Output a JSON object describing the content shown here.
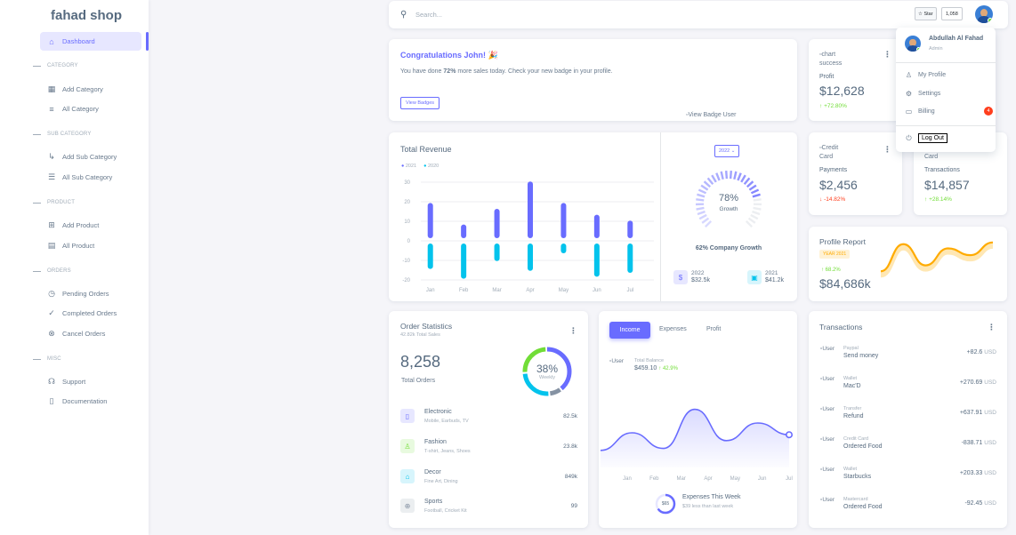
{
  "sidebar": {
    "brand": "fahad shop",
    "dashboard": "Dashboard",
    "sections": [
      {
        "title": "CATEGORY",
        "items": [
          "Add Category",
          "All Category"
        ]
      },
      {
        "title": "SUB CATEGORY",
        "items": [
          "Add Sub Category",
          "All Sub Category"
        ]
      },
      {
        "title": "PRODUCT",
        "items": [
          "Add Product",
          "All Product"
        ]
      },
      {
        "title": "ORDERS",
        "items": [
          "Pending Orders",
          "Completed Orders",
          "Cancel Orders"
        ]
      },
      {
        "title": "MISC",
        "items": [
          "Support",
          "Documentation"
        ]
      }
    ]
  },
  "navbar": {
    "search_placeholder": "Search...",
    "star_label": "Star",
    "star_count": "1,058"
  },
  "dropdown": {
    "user_name": "Abdullah Al Fahad",
    "user_role": "Admin",
    "my_profile": "My Profile",
    "settings": "Settings",
    "billing": "Billing",
    "billing_badge": "4",
    "logout": "Log Out"
  },
  "congrats": {
    "title": "Congratulations John! 🎉",
    "text_pre": "You have done ",
    "text_bold": "72%",
    "text_post": " more sales today. Check your new badge in your profile.",
    "button": "View Badges",
    "image_alt": "View Badge User"
  },
  "profit": {
    "img_alt": "chart success",
    "label": "Profit",
    "value": "$12,628",
    "change": "+72.80%"
  },
  "payments": {
    "img_alt": "Credit Card",
    "label": "Payments",
    "value": "$2,456",
    "change": "-14.82%"
  },
  "transactions_stat": {
    "img_alt": "Credit Card",
    "label": "Transactions",
    "value": "$14,857",
    "change": "+28.14%"
  },
  "total_revenue": {
    "title": "Total Revenue",
    "legend": [
      "2021",
      "2020"
    ],
    "year_select": "2022",
    "growth_percent": "78%",
    "growth_label": "Growth",
    "company_growth": "62% Company Growth",
    "year1": "2022",
    "year1_value": "$32.5k",
    "year2": "2021",
    "year2_value": "$41.2k"
  },
  "profile_report": {
    "title": "Profile Report",
    "badge": "YEAR 2021",
    "change": "68.2%",
    "value": "$84,686k"
  },
  "order_stats": {
    "title": "Order Statistics",
    "subtitle": "42.82k Total Sales",
    "total": "8,258",
    "total_label": "Total Orders",
    "donut_percent": "38%",
    "donut_label": "Weekly",
    "items": [
      {
        "name": "Electronic",
        "desc": "Mobile, Earbuds, TV",
        "value": "82.5k"
      },
      {
        "name": "Fashion",
        "desc": "T-shirt, Jeans, Shoes",
        "value": "23.8k"
      },
      {
        "name": "Decor",
        "desc": "Fine Art, Dining",
        "value": "849k"
      },
      {
        "name": "Sports",
        "desc": "Football, Cricket Kit",
        "value": "99"
      }
    ]
  },
  "income": {
    "tabs": [
      "Income",
      "Expenses",
      "Profit"
    ],
    "img_alt": "User",
    "balance_label": "Total Balance",
    "balance": "$459.10",
    "change": "42.9%",
    "expenses_amount": "$65",
    "expenses_title": "Expenses This Week",
    "expenses_sub": "$39 less than last week"
  },
  "transactions": {
    "title": "Transactions",
    "img_alt": "User",
    "rows": [
      {
        "type": "Paypal",
        "name": "Send money",
        "amount": "+82.6",
        "currency": "USD"
      },
      {
        "type": "Wallet",
        "name": "Mac'D",
        "amount": "+270.69",
        "currency": "USD"
      },
      {
        "type": "Transfer",
        "name": "Refund",
        "amount": "+637.91",
        "currency": "USD"
      },
      {
        "type": "Credit Card",
        "name": "Ordered Food",
        "amount": "-838.71",
        "currency": "USD"
      },
      {
        "type": "Wallet",
        "name": "Starbucks",
        "amount": "+203.33",
        "currency": "USD"
      },
      {
        "type": "Mastercard",
        "name": "Ordered Food",
        "amount": "-92.45",
        "currency": "USD"
      }
    ]
  },
  "colors": {
    "primary": "#696cff",
    "info": "#03c3ec",
    "success": "#71dd37",
    "danger": "#ff3e1d",
    "warning": "#ffab00"
  },
  "chart_data": [
    {
      "type": "bar",
      "title": "Total Revenue",
      "categories": [
        "Jan",
        "Feb",
        "Mar",
        "Apr",
        "May",
        "Jun",
        "Jul"
      ],
      "series": [
        {
          "name": "2021",
          "values": [
            18,
            7,
            15,
            29,
            18,
            12,
            9
          ]
        },
        {
          "name": "2020",
          "values": [
            -13,
            -18,
            -9,
            -14,
            -5,
            -17,
            -15
          ]
        }
      ],
      "ylim": [
        -20,
        30
      ],
      "yticks": [
        30,
        20,
        10,
        0,
        -10,
        -20
      ],
      "grid": true,
      "legend": "top-left"
    },
    {
      "type": "line",
      "title": "Income",
      "categories": [
        "Jan",
        "Feb",
        "Mar",
        "Apr",
        "May",
        "Jun",
        "Jul"
      ],
      "series": [
        {
          "values": [
            21,
            30,
            22,
            42,
            26,
            35,
            29
          ]
        }
      ],
      "grid": false
    },
    {
      "type": "line",
      "title": "Profile Report",
      "x": [
        1,
        2,
        3,
        4,
        5,
        6
      ],
      "series": [
        {
          "values": [
            110,
            270,
            145,
            245,
            205,
            280
          ]
        }
      ],
      "grid": false
    }
  ]
}
